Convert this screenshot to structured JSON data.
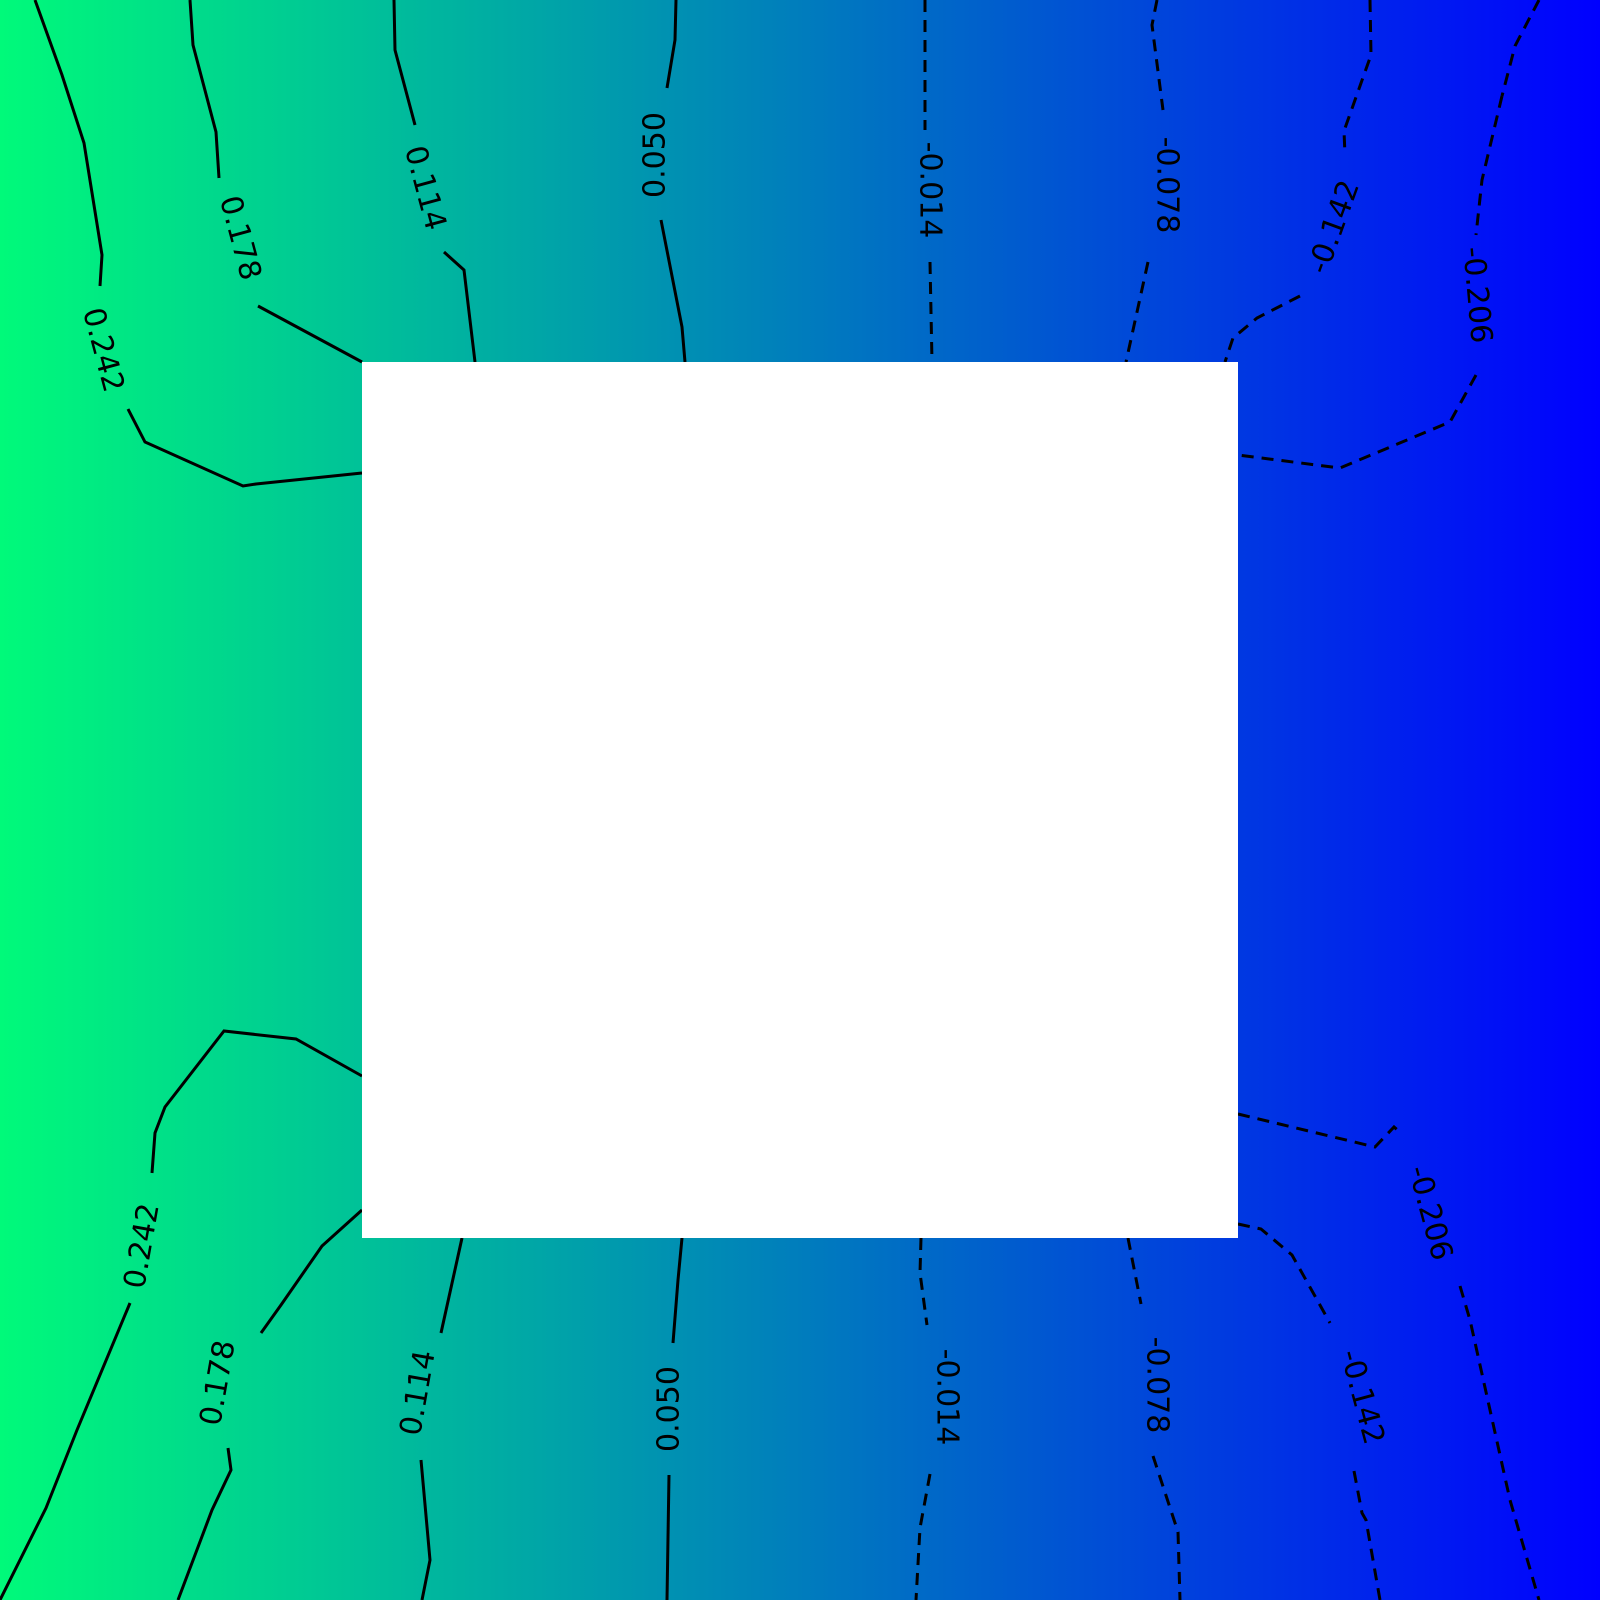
{
  "chart_data": {
    "type": "contour",
    "colormap": [
      "#00fa7a",
      "#0000ff"
    ],
    "color_direction": "left-to-right",
    "masked_region": "center square (white)",
    "negative_levels_dashed": true,
    "levels": [
      {
        "value": 0.242,
        "label": "0.242"
      },
      {
        "value": 0.178,
        "label": "0.178"
      },
      {
        "value": 0.114,
        "label": "0.114"
      },
      {
        "value": 0.05,
        "label": "0.050"
      },
      {
        "value": -0.014,
        "label": "-0.014"
      },
      {
        "value": -0.078,
        "label": "-0.078"
      },
      {
        "value": -0.142,
        "label": "-0.142"
      },
      {
        "value": -0.206,
        "label": "-0.206"
      }
    ],
    "title": "",
    "xlabel": "",
    "ylabel": ""
  }
}
